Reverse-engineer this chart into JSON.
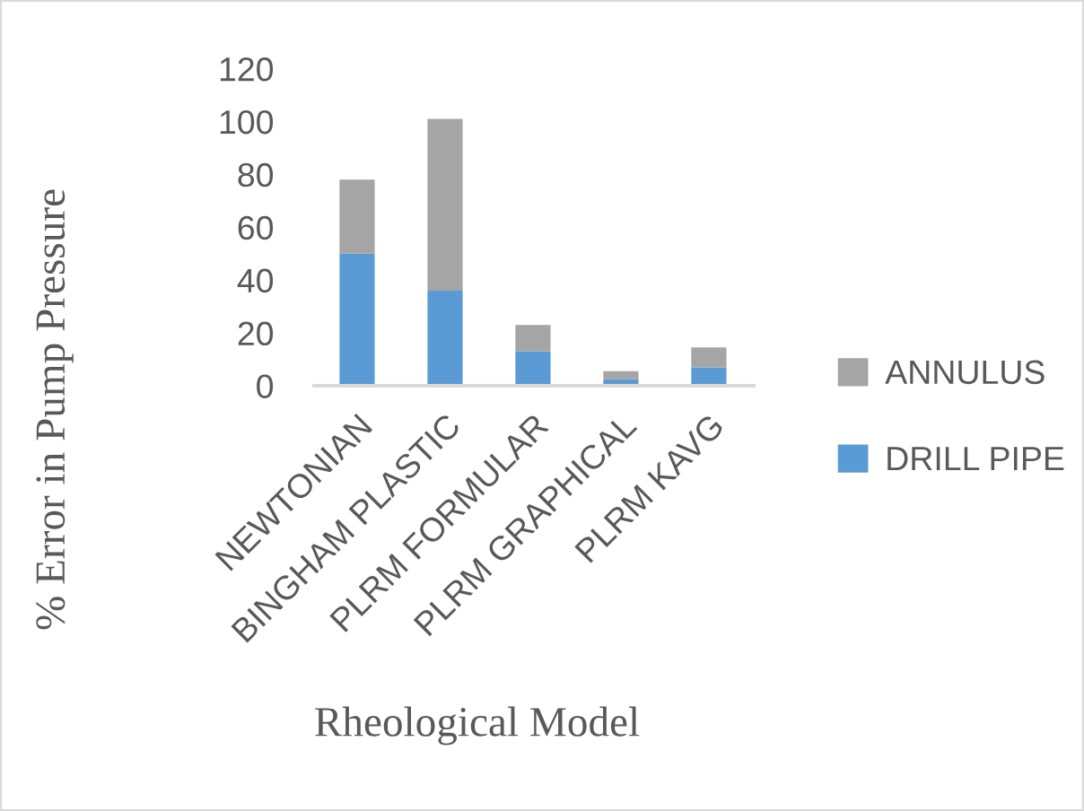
{
  "chart_data": {
    "type": "bar",
    "stacked": true,
    "xlabel": "Rheological Model",
    "ylabel": "% Error in Pump Pressure",
    "categories": [
      "NEWTONIAN",
      "BINGHAM PLASTIC",
      "PLRM FORMULAR",
      "PLRM GRAPHICAL",
      "PLRM KAVG"
    ],
    "series": [
      {
        "name": "DRILL PIPE",
        "color": "#5b9bd5",
        "values": [
          50,
          36,
          13,
          2.5,
          7
        ]
      },
      {
        "name": "ANNULUS",
        "color": "#a5a5a5",
        "values": [
          28,
          65,
          10,
          3,
          7.5
        ]
      }
    ],
    "ylim": [
      0,
      120
    ],
    "yticks": [
      0,
      20,
      40,
      60,
      80,
      100,
      120
    ],
    "legend": "right",
    "grid": false
  }
}
